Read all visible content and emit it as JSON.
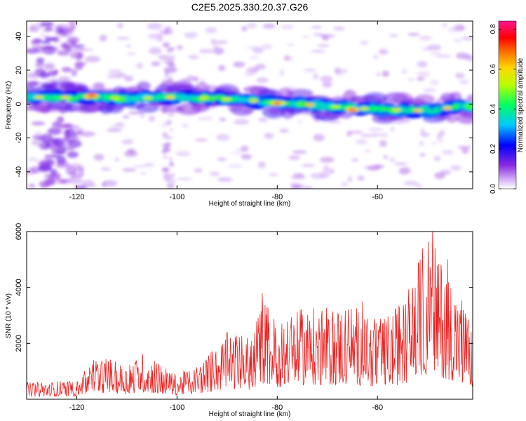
{
  "title": "C2E5.2025.330.20.37.G26",
  "chart_data": [
    {
      "type": "heatmap",
      "title": "C2E5.2025.330.20.37.G26",
      "xlabel": "Height of straight line (km)",
      "ylabel": "Frequency (Hz)",
      "xlim": [
        -130,
        -41
      ],
      "ylim": [
        -50,
        49
      ],
      "xticks": [
        -120,
        -100,
        -80,
        -60
      ],
      "yticks": [
        -40,
        -20,
        0,
        20,
        40
      ],
      "colorbar": {
        "label": "Normalized spectral amplitude",
        "range": [
          0,
          0.84
        ],
        "ticks": [
          0.0,
          0.2,
          0.4,
          0.6,
          0.8
        ],
        "colormap": [
          "#ffffff",
          "#d8b8f8",
          "#8a2be2",
          "#0000ff",
          "#00e5ff",
          "#00ff40",
          "#c8ff00",
          "#ffd700",
          "#ff6600",
          "#ff0000",
          "#ff1493"
        ]
      },
      "ridge": {
        "description": "main signal band",
        "x": [
          -130,
          -120,
          -110,
          -100,
          -90,
          -80,
          -70,
          -60,
          -50,
          -41
        ],
        "frequency": [
          4,
          4,
          3.5,
          4,
          3,
          1,
          -1,
          -3,
          -4,
          -1
        ],
        "peaks": [
          {
            "x": -117,
            "frequency": 5,
            "amplitude": 0.78
          },
          {
            "x": -80,
            "frequency": 0.5,
            "amplitude": 0.72
          },
          {
            "x": -65,
            "frequency": -3.5,
            "amplitude": 0.75
          }
        ]
      }
    },
    {
      "type": "line",
      "xlabel": "Height of straight line (km)",
      "ylabel": "SNR (10 * v/v)",
      "xlim": [
        -130,
        -41
      ],
      "ylim": [
        0,
        6000
      ],
      "xticks": [
        -120,
        -100,
        -80,
        -60
      ],
      "yticks": [
        2000,
        4000,
        6000
      ],
      "series": [
        {
          "name": "SNR",
          "color": "#ee2222",
          "envelope_x": [
            -130,
            -120,
            -116,
            -110,
            -107,
            -100,
            -95,
            -90,
            -85,
            -83,
            -80,
            -75,
            -70,
            -65,
            -60,
            -55,
            -50,
            -47,
            -45,
            -41
          ],
          "envelope_y": [
            600,
            700,
            1600,
            1200,
            1700,
            900,
            1400,
            2400,
            2200,
            3800,
            2800,
            3300,
            3300,
            3500,
            2800,
            3500,
            6000,
            5000,
            4500,
            2500
          ],
          "peaks": [
            {
              "x": -83,
              "y": 3800
            },
            {
              "x": -63,
              "y": 3500
            },
            {
              "x": -49,
              "y": 6000
            },
            {
              "x": -46,
              "y": 5000
            }
          ]
        }
      ]
    }
  ]
}
